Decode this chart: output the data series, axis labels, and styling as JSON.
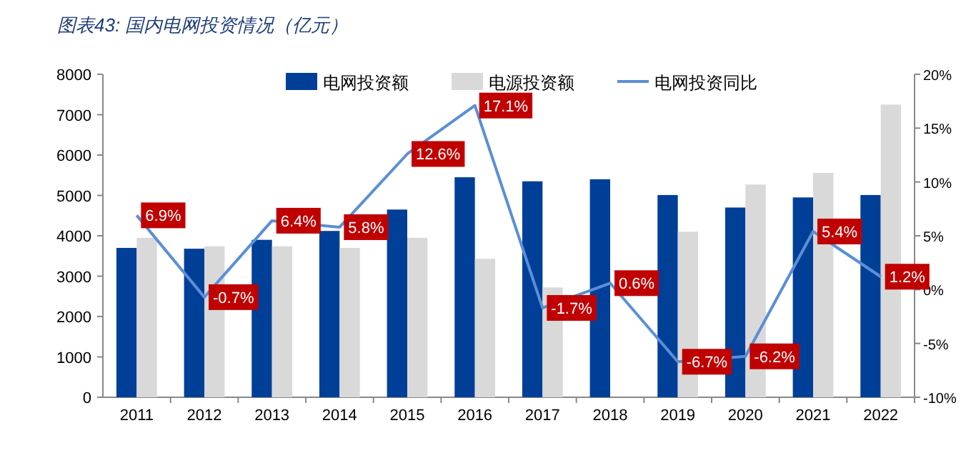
{
  "chart_data": {
    "type": "bar",
    "title": "图表43: 国内电网投资情况（亿元）",
    "categories": [
      "2011",
      "2012",
      "2013",
      "2014",
      "2015",
      "2016",
      "2017",
      "2018",
      "2019",
      "2020",
      "2021",
      "2022"
    ],
    "series": [
      {
        "name": "电网投资额",
        "color": "#003f98",
        "values": [
          3700,
          3680,
          3900,
          4120,
          4650,
          5450,
          5350,
          5400,
          5010,
          4700,
          4950,
          5010
        ]
      },
      {
        "name": "电源投资额",
        "color": "#d9d9d9",
        "values": [
          3950,
          3740,
          3740,
          3700,
          3950,
          3430,
          2720,
          null,
          4100,
          5270,
          5560,
          7250
        ]
      },
      {
        "name": "电网投资同比",
        "type": "line",
        "axis": "y2",
        "color": "#5b8fd6",
        "values": [
          6.9,
          -0.7,
          6.4,
          5.8,
          12.6,
          17.1,
          -1.7,
          0.6,
          -6.7,
          -6.2,
          5.4,
          1.2
        ],
        "value_labels": [
          "6.9%",
          "-0.7%",
          "6.4%",
          "5.8%",
          "12.6%",
          "17.1%",
          "-1.7%",
          "0.6%",
          "-6.7%",
          "-6.2%",
          "5.4%",
          "1.2%"
        ]
      }
    ],
    "ylim": [
      0,
      8000
    ],
    "yticks": [
      0,
      1000,
      2000,
      3000,
      4000,
      5000,
      6000,
      7000,
      8000
    ],
    "y2lim": [
      -10,
      20
    ],
    "y2ticks": [
      {
        "value": -10,
        "label": "-10%"
      },
      {
        "value": -5,
        "label": "-5%"
      },
      {
        "value": 0,
        "label": "0%"
      },
      {
        "value": 5,
        "label": "5%"
      },
      {
        "value": 10,
        "label": "10%"
      },
      {
        "value": 15,
        "label": "15%"
      },
      {
        "value": 20,
        "label": "20%"
      }
    ],
    "legend": "top",
    "grid": false
  }
}
